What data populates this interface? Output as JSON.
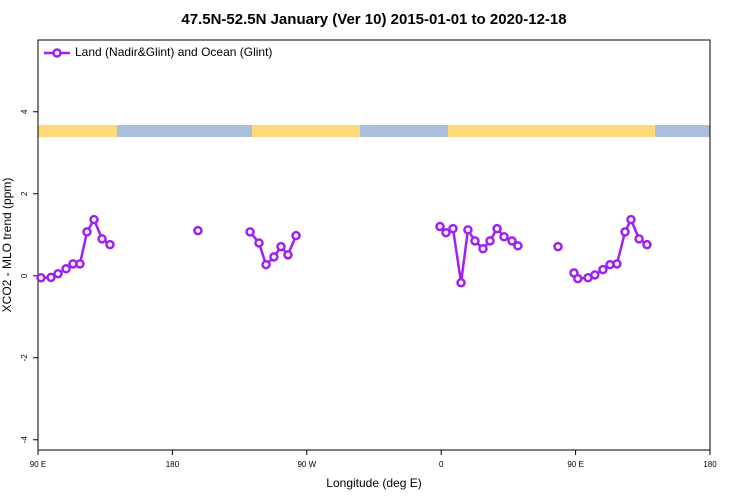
{
  "chart_data": {
    "type": "line",
    "title": "47.5N-52.5N January (Ver 10)   2015-01-01 to 2020-12-18",
    "x_label": "Longitude (deg E)",
    "y_label": "XCO2 - MLO trend (ppm)",
    "xlim": [
      90,
      540
    ],
    "xticks": [
      {
        "value": 90,
        "label": "90 E"
      },
      {
        "value": 180,
        "label": "180"
      },
      {
        "value": 270,
        "label": "90 W"
      },
      {
        "value": 360,
        "label": "0"
      },
      {
        "value": 450,
        "label": "90 E"
      },
      {
        "value": 540,
        "label": "180"
      }
    ],
    "ylim": [
      -4.25,
      5.75
    ],
    "yticks": [
      -4,
      -2,
      0,
      2,
      4
    ],
    "legend_position": "top-left",
    "series": [
      {
        "name": "Land (Nadir&Glint) and Ocean (Glint)",
        "color": "#a020f0",
        "x": [
          92.0,
          98.7,
          103.4,
          108.8,
          113.4,
          118.1,
          122.8,
          127.5,
          132.9,
          138.2,
          null,
          197.1,
          null,
          232.0,
          238.0,
          242.7,
          248.0,
          252.7,
          257.4,
          262.8,
          null,
          359.2,
          363.2,
          367.9,
          373.3,
          377.9,
          382.6,
          388.0,
          392.7,
          397.4,
          402.1,
          407.4,
          411.4,
          null,
          438.2,
          null,
          448.9,
          451.5,
          458.3,
          462.9,
          468.3,
          473.0,
          477.7,
          483.1,
          487.1,
          492.5,
          497.8
        ],
        "values": [
          -0.05,
          -0.04,
          0.05,
          0.17,
          0.29,
          0.29,
          1.07,
          1.37,
          0.9,
          0.76,
          null,
          1.1,
          null,
          1.07,
          0.8,
          0.27,
          0.46,
          0.71,
          0.51,
          0.98,
          null,
          1.2,
          1.05,
          1.15,
          -0.17,
          1.12,
          0.85,
          0.66,
          0.85,
          1.15,
          0.95,
          0.85,
          0.73,
          null,
          0.71,
          null,
          0.07,
          -0.07,
          -0.05,
          0.02,
          0.15,
          0.27,
          0.29,
          1.07,
          1.37,
          0.9,
          0.76
        ]
      }
    ]
  }
}
